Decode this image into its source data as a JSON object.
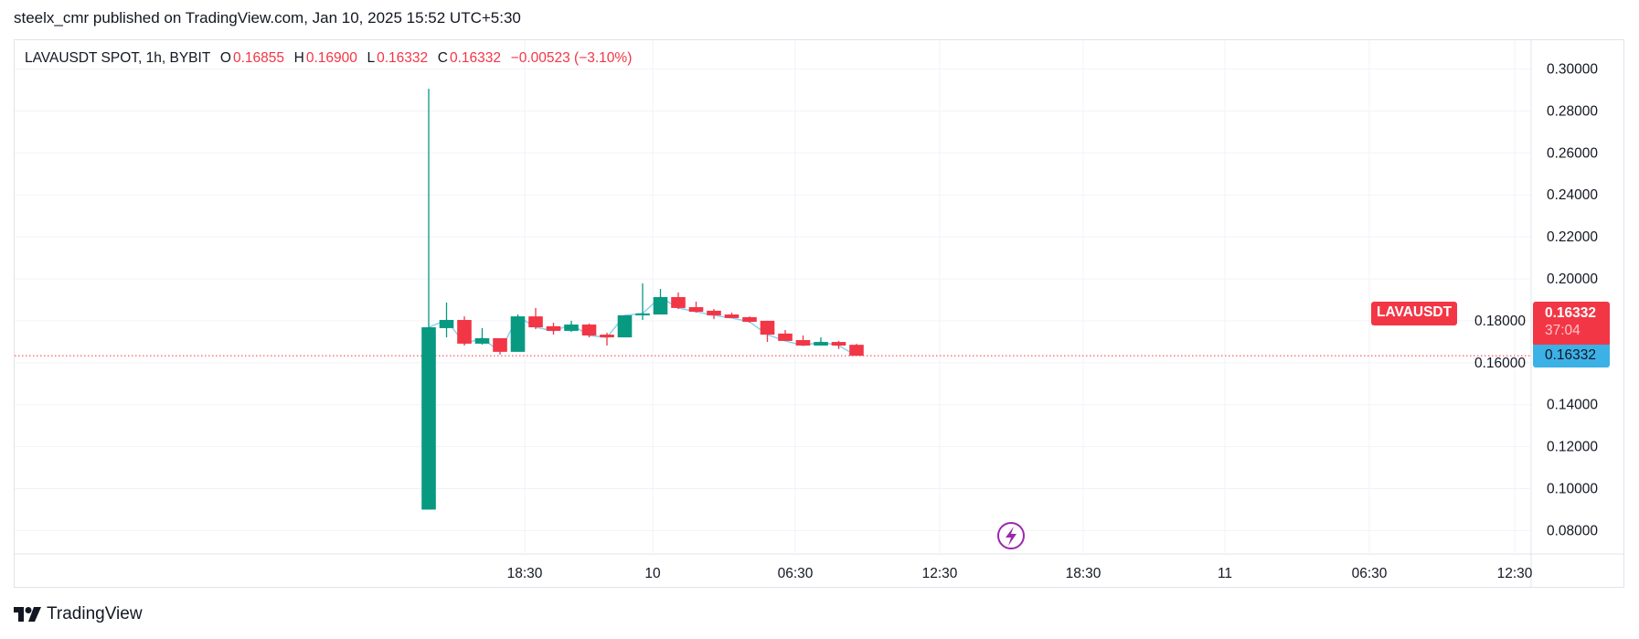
{
  "published": "steelx_cmr published on TradingView.com, Jan 10, 2025 15:52 UTC+5:30",
  "legend": {
    "symbol": "LAVAUSDT SPOT, 1h, BYBIT",
    "o_label": "O",
    "o": "0.16855",
    "h_label": "H",
    "h": "0.16900",
    "l_label": "L",
    "l": "0.16332",
    "c_label": "C",
    "c": "0.16332",
    "change": "−0.00523 (−3.10%)"
  },
  "price_tags": {
    "symbol": "LAVAUSDT",
    "last": "0.16332",
    "countdown": "37:04",
    "line_value": "0.16332"
  },
  "footer": {
    "brand": "TradingView",
    "logo_icon": "tradingview-logo-icon"
  },
  "indicator_icon": "lightning-icon",
  "colors": {
    "up": "#089981",
    "down": "#f23645",
    "line": "#8fd0f0",
    "last_line": "#f23645",
    "tag_blue": "#3cb1e6",
    "event": "#9c27b0"
  },
  "chart_data": {
    "type": "candlestick",
    "y_ticks": [
      "0.30000",
      "0.28000",
      "0.26000",
      "0.24000",
      "0.22000",
      "0.20000",
      "0.18000",
      "0.16000",
      "0.14000",
      "0.12000",
      "0.10000",
      "0.08000"
    ],
    "ylim": [
      0.08,
      0.3
    ],
    "x_ticks": [
      "18:30",
      "10",
      "06:30",
      "12:30",
      "18:30",
      "11",
      "06:30",
      "12:30"
    ],
    "grid": true,
    "candles": [
      [
        0.09,
        0.2906,
        0.09,
        0.1769
      ],
      [
        0.1765,
        0.1887,
        0.1721,
        0.1804
      ],
      [
        0.1804,
        0.1821,
        0.1682,
        0.1691
      ],
      [
        0.1691,
        0.1765,
        0.1686,
        0.1717
      ],
      [
        0.1717,
        0.1717,
        0.1639,
        0.1652
      ],
      [
        0.1652,
        0.183,
        0.1652,
        0.1821
      ],
      [
        0.1821,
        0.1861,
        0.176,
        0.1769
      ],
      [
        0.1774,
        0.1791,
        0.1734,
        0.1752
      ],
      [
        0.1752,
        0.18,
        0.1747,
        0.1782
      ],
      [
        0.1782,
        0.1787,
        0.1721,
        0.173
      ],
      [
        0.1734,
        0.1743,
        0.1682,
        0.1721
      ],
      [
        0.1721,
        0.1826,
        0.1721,
        0.1826
      ],
      [
        0.1826,
        0.1978,
        0.1804,
        0.1835
      ],
      [
        0.183,
        0.1952,
        0.183,
        0.1913
      ],
      [
        0.1913,
        0.1935,
        0.1856,
        0.1861
      ],
      [
        0.1865,
        0.1891,
        0.1839,
        0.1843
      ],
      [
        0.1848,
        0.1856,
        0.1808,
        0.1826
      ],
      [
        0.183,
        0.1839,
        0.1813,
        0.1813
      ],
      [
        0.1817,
        0.1821,
        0.1791,
        0.1795
      ],
      [
        0.18,
        0.18,
        0.1699,
        0.1734
      ],
      [
        0.1739,
        0.1756,
        0.1704,
        0.1704
      ],
      [
        0.1708,
        0.173,
        0.1682,
        0.1682
      ],
      [
        0.1682,
        0.1721,
        0.1682,
        0.1699
      ],
      [
        0.1699,
        0.1704,
        0.1665,
        0.1682
      ],
      [
        0.16855,
        0.169,
        0.16332,
        0.16332
      ]
    ],
    "last_price": 0.16332
  }
}
